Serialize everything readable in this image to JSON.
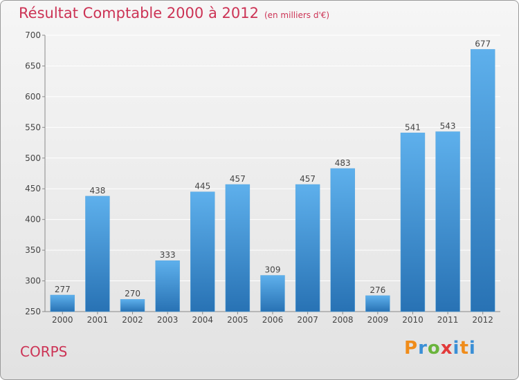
{
  "header": {
    "title": "Résultat Comptable 2000 à 2012",
    "unit": "(en milliers d'€)"
  },
  "footer": {
    "commune": "CORPS",
    "logo": {
      "text": "Proxiti",
      "letter_colors": [
        "#f08c1a",
        "#3a8fd6",
        "#6ab43c",
        "#e23a3a",
        "#3a8fd6",
        "#f08c1a",
        "#3a8fd6"
      ]
    }
  },
  "colors": {
    "bar_top": "#5eb0ec",
    "bar_bottom": "#2872b4",
    "title": "#cc3355",
    "grid": "#ffffff"
  },
  "chart_data": {
    "type": "bar",
    "categories": [
      "2000",
      "2001",
      "2002",
      "2003",
      "2004",
      "2005",
      "2006",
      "2007",
      "2008",
      "2009",
      "2010",
      "2011",
      "2012"
    ],
    "values": [
      277,
      438,
      270,
      333,
      445,
      457,
      309,
      457,
      483,
      276,
      541,
      543,
      677
    ],
    "ylim": [
      250,
      700
    ],
    "yticks": [
      250,
      300,
      350,
      400,
      450,
      500,
      550,
      600,
      650,
      700
    ],
    "grid": true,
    "xlabel": "",
    "ylabel": ""
  }
}
